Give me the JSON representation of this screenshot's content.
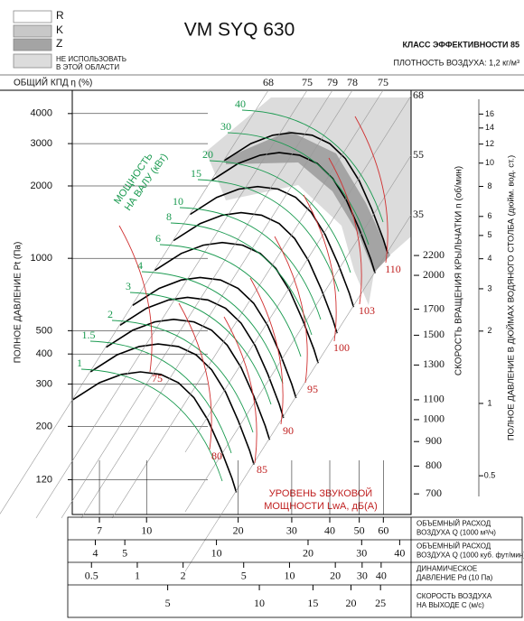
{
  "chart_data": {
    "type": "fan_curve",
    "title": "VM SYQ 630",
    "efficiency_class": "КЛАСС ЭФФЕКТИВНОСТИ 85",
    "air_density": "ПЛОТНОСТЬ ВОЗДУХА: 1,2 кг/м³",
    "legend": [
      {
        "name": [
          "R"
        ],
        "color": "#ffffff"
      },
      {
        "name": [
          "K"
        ],
        "color": "#c8c8c8"
      },
      {
        "name": [
          "Z"
        ],
        "color": "#a4a4a4"
      },
      {
        "name": [
          "НЕ ИСПОЛЬЗОВАТЬ",
          "В ЭТОЙ ОБЛАСТИ"
        ],
        "color": "#dcdcdc"
      }
    ],
    "efficiency_label": "ОБЩИЙ КПД η (%)",
    "efficiency_top": [
      68,
      75,
      79,
      78,
      75
    ],
    "efficiency_right": [
      68,
      55,
      35
    ],
    "ylabel": "ПОЛНОЕ ДАВЛЕНИЕ Pt (Па)",
    "log_y": true,
    "ylim": [
      86,
      5000
    ],
    "yticks": [
      120,
      200,
      300,
      400,
      500,
      1000,
      2000,
      3000,
      4000
    ],
    "y2label": "ПОЛНОЕ ДАВЛЕНИЕ В ДЮЙМАХ ВОДЯНОГО СТОЛБА (дюйм. вод. ст.)",
    "y2lim": [
      0.345,
      20.1
    ],
    "y2ticks": [
      0.5,
      1,
      2,
      3,
      4,
      5,
      6,
      8,
      10,
      12,
      14,
      16
    ],
    "speed_label": "СКОРОСТЬ ВРАЩЕНИЯ КРЫЛЬЧАТКИ n (об/мин)",
    "speed_lim": [
      634,
      4866
    ],
    "speed_ticks": [
      700,
      800,
      900,
      1000,
      1100,
      1300,
      1500,
      1700,
      2000,
      2200
    ],
    "power_label": [
      "МОЩНОСТЬ",
      "НА ВАЛУ (кВт)"
    ],
    "power_values": [
      40,
      30,
      20,
      15,
      10,
      8,
      6,
      4,
      3,
      2,
      1.5,
      1
    ],
    "sound_label": [
      "УРОВЕНЬ ЗВУКОВОЙ",
      "МОЩНОСТИ LwA, дБ(A)"
    ],
    "sound_values": [
      75,
      80,
      85,
      90,
      95,
      100,
      103,
      110
    ],
    "x_axes": [
      {
        "label": [
          "ОБЪЕМНЫЙ РАСХОД",
          "ВОЗДУХА Q (1000 м³/ч)"
        ],
        "xlim": [
          5.7,
          74
        ],
        "xticks": [
          7,
          10,
          20,
          30,
          40,
          50,
          60
        ]
      },
      {
        "label": [
          "ОБЪЕМНЫЙ РАСХОД",
          "ВОЗДУХА Q (1000 куб. фут/мин)"
        ],
        "xlim": [
          3.36,
          43.6
        ],
        "xticks": [
          4,
          5,
          10,
          20,
          30,
          40
        ]
      },
      {
        "label": [
          "ДИНАМИЧЕСКОЕ",
          "ДАВЛЕНИЕ Pd (10 Па)"
        ],
        "xlim": [
          0.374,
          62.9
        ],
        "xticks": [
          0.5,
          1,
          2,
          5,
          10,
          20,
          30,
          40
        ]
      },
      {
        "label": [
          "СКОРОСТЬ ВОЗДУХА",
          "НА ВЫХОДЕ C (м/с)"
        ],
        "xlim": [
          2.43,
          31.5
        ],
        "xticks": [
          5,
          10,
          15,
          20,
          25
        ]
      }
    ]
  }
}
